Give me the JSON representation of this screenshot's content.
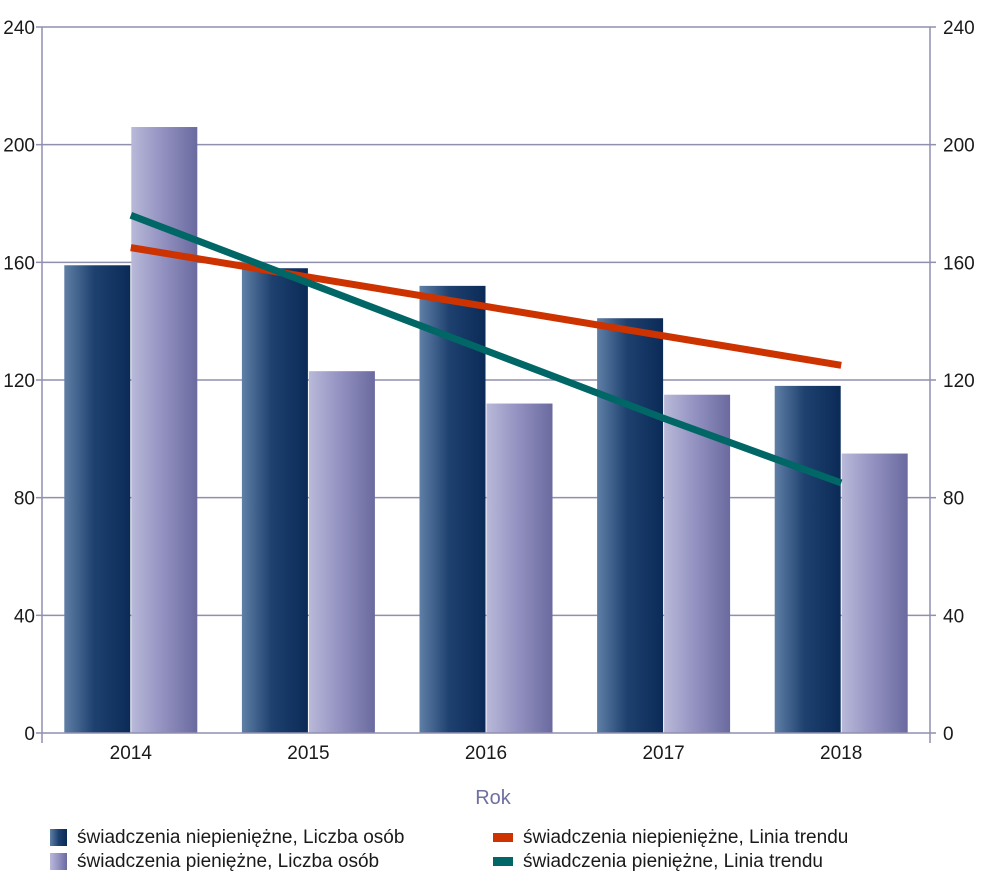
{
  "chart_data": {
    "type": "bar",
    "categories": [
      "2014",
      "2015",
      "2016",
      "2017",
      "2018"
    ],
    "xlabel": "Rok",
    "ylim": [
      0,
      240
    ],
    "yticks": [
      0,
      40,
      80,
      120,
      160,
      200,
      240
    ],
    "secondary_axis": true,
    "grid": true,
    "legend_position": "bottom",
    "series": [
      {
        "name": "świadczenia niepieniężne, Liczba osób",
        "kind": "bar",
        "color": "#1f3f6e",
        "values": [
          159,
          158,
          152,
          141,
          118
        ]
      },
      {
        "name": "świadczenia pieniężne, Liczba osób",
        "kind": "bar",
        "color": "#8a88b8",
        "values": [
          206,
          123,
          112,
          115,
          95
        ]
      },
      {
        "name": "świadczenia niepieniężne, Linia trendu",
        "kind": "line",
        "color": "#cc3300",
        "values": [
          165,
          155,
          145,
          135,
          125
        ]
      },
      {
        "name": "świadczenia pieniężne, Linia trendu",
        "kind": "line",
        "color": "#006666",
        "values": [
          176,
          153,
          130,
          107,
          85
        ]
      }
    ]
  }
}
